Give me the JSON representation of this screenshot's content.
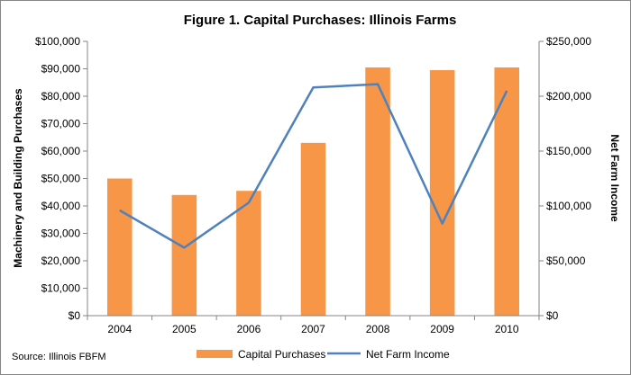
{
  "chart_data": {
    "type": "bar+line",
    "title": "Figure 1.  Capital Purchases: Illinois Farms",
    "source_note": "Source: Illinois FBFM",
    "categories": [
      "2004",
      "2005",
      "2006",
      "2007",
      "2008",
      "2009",
      "2010"
    ],
    "y_left": {
      "label": "Machinery and Building Purchases",
      "min": 0,
      "max": 100000,
      "step": 10000,
      "tick_labels": [
        "$0",
        "$10,000",
        "$20,000",
        "$30,000",
        "$40,000",
        "$50,000",
        "$60,000",
        "$70,000",
        "$80,000",
        "$90,000",
        "$100,000"
      ]
    },
    "y_right": {
      "label": "Net Farm Income",
      "min": 0,
      "max": 250000,
      "step": 50000,
      "tick_labels": [
        "$0",
        "$50,000",
        "$100,000",
        "$150,000",
        "$200,000",
        "$250,000"
      ]
    },
    "series": [
      {
        "name": "Capital Purchases",
        "type": "bar",
        "axis": "left",
        "color": "#F79646",
        "values": [
          50000,
          44000,
          45500,
          63000,
          90500,
          89500,
          90500
        ]
      },
      {
        "name": "Net Farm Income",
        "type": "line",
        "axis": "right",
        "color": "#4F81BD",
        "values": [
          96000,
          62000,
          103000,
          208000,
          211000,
          84000,
          205000
        ]
      }
    ],
    "legend_position": "bottom",
    "grid": false
  }
}
